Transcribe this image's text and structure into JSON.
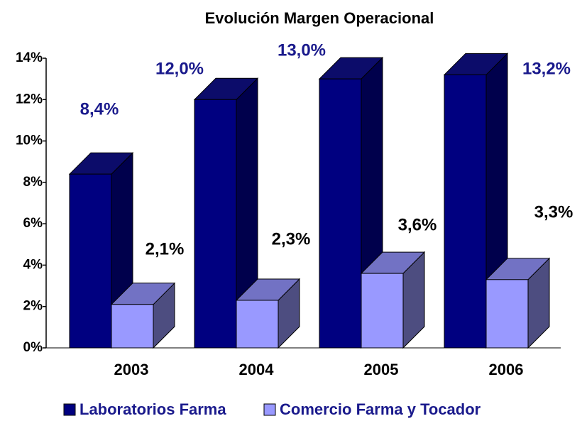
{
  "chart_data": {
    "type": "bar3d",
    "title": "Evolución Margen Operacional",
    "categories": [
      "2003",
      "2004",
      "2005",
      "2006"
    ],
    "series": [
      {
        "name": "Laboratorios Farma",
        "color": "#000080",
        "values": [
          8.4,
          12.0,
          13.0,
          13.2
        ],
        "value_labels": [
          "8,4%",
          "12,0%",
          "13,0%",
          "13,2%"
        ]
      },
      {
        "name": "Comercio Farma y Tocador",
        "color": "#9999ff",
        "values": [
          2.1,
          2.3,
          3.6,
          3.3
        ],
        "value_labels": [
          "2,1%",
          "2,3%",
          "3,6%",
          "3,3%"
        ]
      }
    ],
    "ylim": [
      0,
      14
    ],
    "yticks": [
      {
        "value": 0,
        "label": "0%"
      },
      {
        "value": 2,
        "label": "2%"
      },
      {
        "value": 4,
        "label": "4%"
      },
      {
        "value": 6,
        "label": "6%"
      },
      {
        "value": 8,
        "label": "8%"
      },
      {
        "value": 10,
        "label": "10%"
      },
      {
        "value": 12,
        "label": "12%"
      },
      {
        "value": 14,
        "label": "14%"
      }
    ],
    "legend": "bottom"
  }
}
